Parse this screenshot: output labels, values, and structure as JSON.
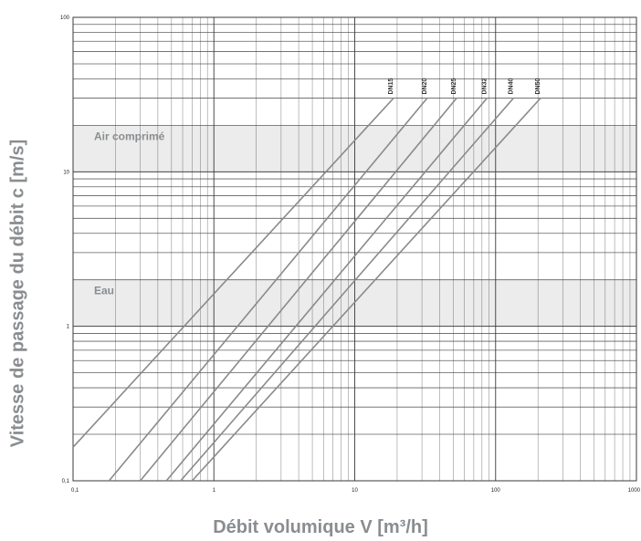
{
  "chart_data": {
    "type": "line",
    "xlabel": "Débit volumique V [m³/h]",
    "ylabel": "Vitesse de passage du débit c [m/s]",
    "x_scale": "log",
    "y_scale": "log",
    "xlim": [
      0.1,
      1000
    ],
    "ylim": [
      0.1,
      100
    ],
    "x_ticks": [
      "0,1",
      "1",
      "10",
      "100",
      "1000"
    ],
    "y_ticks": [
      "0,1",
      "1",
      "10",
      "100"
    ],
    "grid": true,
    "bands": [
      {
        "label": "Air comprimé",
        "range": [
          10,
          20
        ]
      },
      {
        "label": "Eau",
        "range": [
          1,
          2
        ]
      }
    ],
    "series": [
      {
        "name": "DN15",
        "x": [
          0.1,
          18.9
        ],
        "y": [
          0.165,
          30
        ]
      },
      {
        "name": "DN20",
        "x": [
          0.18,
          32.7
        ],
        "y": [
          0.1,
          30
        ]
      },
      {
        "name": "DN25",
        "x": [
          0.3,
          52.9
        ],
        "y": [
          0.1,
          30
        ]
      },
      {
        "name": "DN32",
        "x": [
          0.46,
          87
        ],
        "y": [
          0.1,
          30
        ]
      },
      {
        "name": "DN40",
        "x": [
          0.58,
          134
        ],
        "y": [
          0.1,
          30
        ]
      },
      {
        "name": "DN50",
        "x": [
          0.7,
          209
        ],
        "y": [
          0.1,
          30
        ]
      }
    ]
  },
  "colors": {
    "grid": "#3a3a3a",
    "band": "#ececec",
    "series": "#8a8a8a",
    "band_label": "#8a8d90",
    "axis_title": "#8a8d90"
  }
}
